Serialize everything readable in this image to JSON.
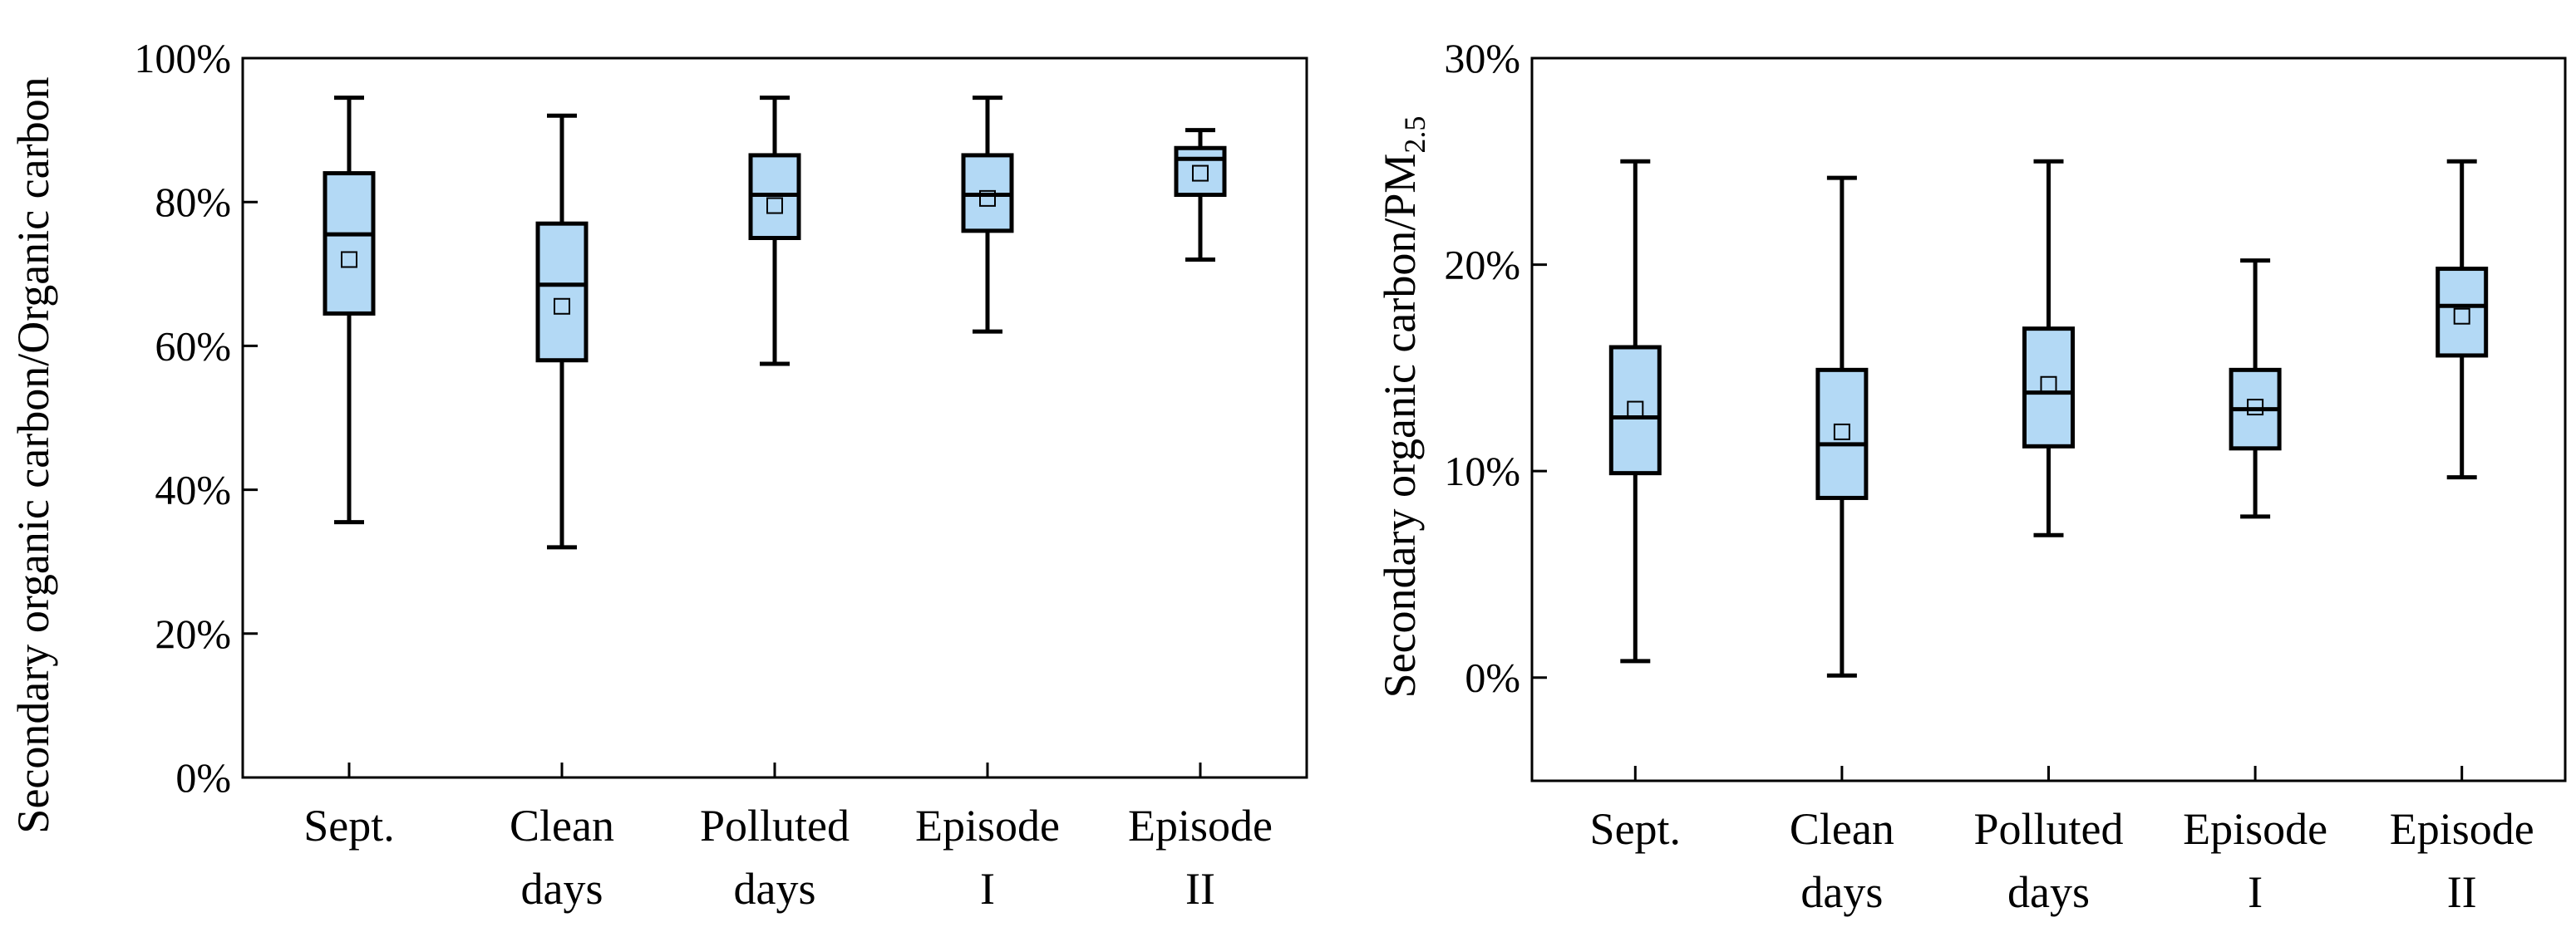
{
  "chart_data": [
    {
      "type": "boxplot",
      "title": "",
      "ylabel": "Secondary organic carbon/Organic carbon",
      "ylabel_subscript": "",
      "ylim": [
        0,
        100
      ],
      "y_ticks": [
        0,
        20,
        40,
        60,
        80,
        100
      ],
      "y_tick_labels": [
        "0%",
        "20%",
        "40%",
        "60%",
        "80%",
        "100%"
      ],
      "categories": [
        {
          "line1": "Sept.",
          "line2": ""
        },
        {
          "line1": "Clean",
          "line2": "days"
        },
        {
          "line1": "Polluted",
          "line2": "days"
        },
        {
          "line1": "Episode",
          "line2": "I"
        },
        {
          "line1": "Episode",
          "line2": "II"
        }
      ],
      "boxes": [
        {
          "min": 35.5,
          "q1": 64.5,
          "median": 75.5,
          "q3": 84,
          "max": 94.5,
          "mean": 72
        },
        {
          "min": 32,
          "q1": 58,
          "median": 68.5,
          "q3": 77,
          "max": 92,
          "mean": 65.5
        },
        {
          "min": 57.5,
          "q1": 75,
          "median": 81,
          "q3": 86.5,
          "max": 94.5,
          "mean": 79.5
        },
        {
          "min": 62,
          "q1": 76,
          "median": 81,
          "q3": 86.5,
          "max": 94.5,
          "mean": 80.5
        },
        {
          "min": 72,
          "q1": 81,
          "median": 86,
          "q3": 87.5,
          "max": 90,
          "mean": 84
        }
      ],
      "box_color": "#b3d9f5",
      "line_color": "#000000"
    },
    {
      "type": "boxplot",
      "title": "",
      "ylabel": "Secondary organic carbon/PM",
      "ylabel_subscript": "2.5",
      "ylim": [
        -5,
        30
      ],
      "y_ticks": [
        0,
        10,
        20,
        30
      ],
      "y_tick_labels": [
        "0%",
        "10%",
        "20%",
        "30%"
      ],
      "categories": [
        {
          "line1": "Sept.",
          "line2": ""
        },
        {
          "line1": "Clean",
          "line2": "days"
        },
        {
          "line1": "Polluted",
          "line2": "days"
        },
        {
          "line1": "Episode",
          "line2": "I"
        },
        {
          "line1": "Episode",
          "line2": "II"
        }
      ],
      "boxes": [
        {
          "min": 0.8,
          "q1": 9.9,
          "median": 12.6,
          "q3": 16,
          "max": 25,
          "mean": 13
        },
        {
          "min": 0.1,
          "q1": 8.7,
          "median": 11.3,
          "q3": 14.9,
          "max": 24.2,
          "mean": 11.9
        },
        {
          "min": 6.9,
          "q1": 11.2,
          "median": 13.8,
          "q3": 16.9,
          "max": 25,
          "mean": 14.2
        },
        {
          "min": 7.8,
          "q1": 11.1,
          "median": 13,
          "q3": 14.9,
          "max": 20.2,
          "mean": 13.1
        },
        {
          "min": 9.7,
          "q1": 15.6,
          "median": 18,
          "q3": 19.8,
          "max": 25,
          "mean": 17.5
        }
      ],
      "box_color": "#b3d9f5",
      "line_color": "#000000"
    }
  ]
}
